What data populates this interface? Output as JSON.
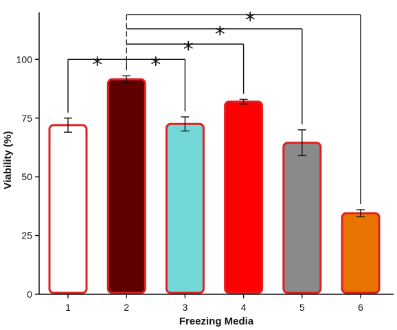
{
  "chart_data": {
    "type": "bar",
    "categories": [
      "1",
      "2",
      "3",
      "4",
      "5",
      "6"
    ],
    "values": [
      72,
      91.5,
      72.5,
      82,
      64.5,
      34.5
    ],
    "errors": [
      3,
      1.5,
      3,
      1,
      5.5,
      1.5
    ],
    "bar_fill_colors": [
      "#ffffff",
      "#5e0000",
      "#74d8d8",
      "#ff0000",
      "#8a8a8a",
      "#e87400"
    ],
    "bar_edge_color": "#e02020",
    "xlabel": "Freezing Media",
    "ylabel": "Viability (%)",
    "ylim": [
      0,
      120
    ],
    "yticks": [
      0,
      25,
      50,
      75,
      100
    ],
    "grid": false,
    "significance": [
      {
        "from": "1",
        "to": "2",
        "label": "*",
        "level": 100
      },
      {
        "from": "2",
        "to": "3",
        "label": "*",
        "level": 100
      },
      {
        "from": "2",
        "to": "4",
        "label": "*",
        "level": 106.5
      },
      {
        "from": "2",
        "to": "5",
        "label": "*",
        "level": 113
      },
      {
        "from": "2",
        "to": "6",
        "label": "*",
        "level": 119
      }
    ]
  }
}
